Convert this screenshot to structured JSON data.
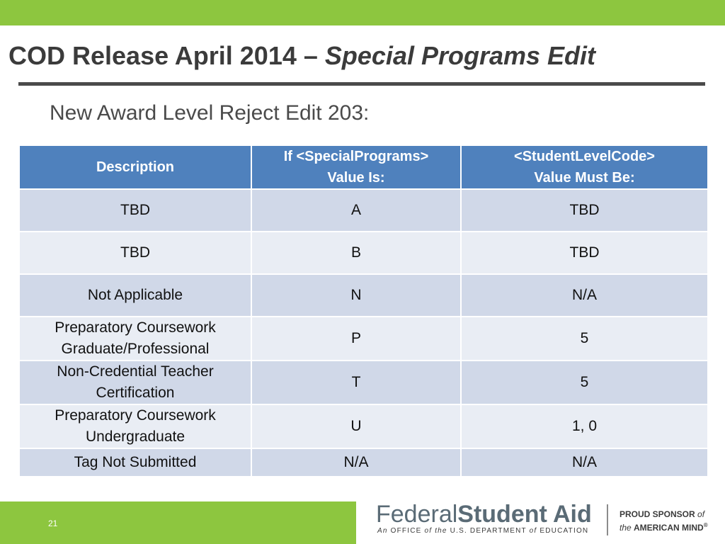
{
  "slide": {
    "title_main": "COD Release April 2014 – ",
    "title_italic": "Special Programs Edit",
    "subtitle": "New Award Level Reject Edit 203:",
    "slide_number": "21"
  },
  "table": {
    "headers": [
      {
        "line1": "Description",
        "line2": ""
      },
      {
        "line1": "If <SpecialPrograms>",
        "line2": "Value Is:"
      },
      {
        "line1": "<StudentLevelCode>",
        "line2": "Value Must Be:"
      }
    ],
    "rows": [
      {
        "description": [
          "TBD"
        ],
        "value": "A",
        "must_be": "TBD"
      },
      {
        "description": [
          "TBD"
        ],
        "value": "B",
        "must_be": "TBD"
      },
      {
        "description": [
          "Not Applicable"
        ],
        "value": "N",
        "must_be": "N/A"
      },
      {
        "description": [
          "Preparatory Coursework",
          "Graduate/Professional"
        ],
        "value": "P",
        "must_be": "5"
      },
      {
        "description": [
          "Non-Credential Teacher",
          "Certification"
        ],
        "value": "T",
        "must_be": "5"
      },
      {
        "description": [
          "Preparatory Coursework",
          "Undergraduate"
        ],
        "value": "U",
        "must_be": "1, 0"
      },
      {
        "description": [
          "Tag Not Submitted"
        ],
        "value": "N/A",
        "must_be": "N/A"
      }
    ]
  },
  "logo": {
    "federal": "Federal",
    "student_aid": "Student Aid",
    "tagline_parts": [
      "An ",
      "OFFICE ",
      "of ",
      "the ",
      "U.S. DEPARTMENT ",
      "of ",
      "EDUCATION"
    ],
    "sponsor_line1_a": "PROUD SPONSOR ",
    "sponsor_line1_b": "of",
    "sponsor_line2_a": "the ",
    "sponsor_line2_b": "AMERICAN MIND",
    "registered": "®"
  },
  "colors": {
    "accent_green": "#8dc63f",
    "header_blue": "#4f81bd",
    "row_dark": "#d0d8e8",
    "row_light": "#e9edf4"
  }
}
